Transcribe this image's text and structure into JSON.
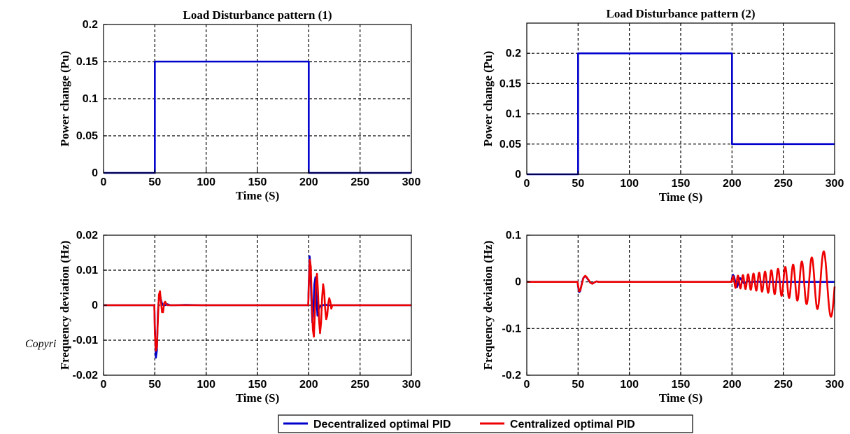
{
  "side_text": "Copyri",
  "legend": {
    "items": [
      {
        "label": "Decentralized optimal PID",
        "color": "#0000cc"
      },
      {
        "label": "Centralized optimal PID",
        "color": "#ee0000"
      }
    ]
  },
  "chart_data": [
    {
      "type": "line",
      "title": "Load Disturbance pattern (1)",
      "xlabel": "Time (S)",
      "ylabel": "Power change (Pu)",
      "xlim": [
        0,
        300
      ],
      "ylim": [
        0,
        0.2
      ],
      "xticks": [
        0,
        50,
        100,
        150,
        200,
        250,
        300
      ],
      "yticks": [
        0,
        0.05,
        0.1,
        0.15,
        0.2
      ],
      "ytick_labels": [
        "0",
        "0.05",
        "0.1",
        "0.15",
        "0.2"
      ],
      "grid": true,
      "series": [
        {
          "color": "#0000cc",
          "x": [
            0,
            50,
            50,
            200,
            200,
            300
          ],
          "y": [
            0,
            0,
            0.15,
            0.15,
            0,
            0
          ]
        }
      ]
    },
    {
      "type": "line",
      "title": "Load Disturbance pattern (2)",
      "xlabel": "Time (S)",
      "ylabel": "Power change (Pu)",
      "xlim": [
        0,
        300
      ],
      "ylim": [
        0,
        0.25
      ],
      "xticks": [
        0,
        50,
        100,
        150,
        200,
        250,
        300
      ],
      "yticks": [
        0,
        0.05,
        0.1,
        0.15,
        0.2
      ],
      "ytick_labels": [
        "0",
        "0.05",
        "0.1",
        "0.15",
        "0.2"
      ],
      "grid": true,
      "series": [
        {
          "color": "#0000cc",
          "x": [
            0,
            50,
            50,
            200,
            200,
            300
          ],
          "y": [
            0,
            0,
            0.2,
            0.2,
            0.05,
            0.05
          ]
        }
      ]
    },
    {
      "type": "line",
      "title": "",
      "xlabel": "Time (S)",
      "ylabel": "Frequency deviation (Hz)",
      "xlim": [
        0,
        300
      ],
      "ylim": [
        -0.02,
        0.02
      ],
      "xticks": [
        0,
        50,
        100,
        150,
        200,
        250,
        300
      ],
      "yticks": [
        -0.02,
        -0.01,
        0,
        0.01,
        0.02
      ],
      "ytick_labels": [
        "-0.02",
        "-0.01",
        "0",
        "0.01",
        "0.02"
      ],
      "grid": true,
      "series": [
        {
          "name": "Decentralized optimal PID",
          "color": "#0000cc",
          "x": [
            0,
            49.5,
            50,
            51,
            52,
            53,
            54,
            55,
            56,
            57,
            58,
            60,
            62,
            65,
            70,
            80,
            95,
            100,
            199.5,
            200,
            200.8,
            201.5,
            202.5,
            203.5,
            204.5,
            205.5,
            206.5,
            207.5,
            208.5,
            209.5,
            210.5,
            212,
            214,
            216,
            218,
            220,
            223,
            300
          ],
          "y": [
            0,
            0,
            -0.006,
            -0.015,
            -0.013,
            -0.002,
            0.002,
            0.003,
            0.0015,
            0.0005,
            0.0001,
            0,
            0.0003,
            0,
            0,
            0.0001,
            0,
            0,
            0,
            0.006,
            0.014,
            0.012,
            0.002,
            -0.005,
            -0.001,
            0.006,
            0.008,
            0.002,
            -0.003,
            -0.0015,
            -0.0005,
            -0.0003,
            0,
            0.0002,
            0,
            0,
            0,
            0
          ]
        },
        {
          "name": "Centralized optimal PID",
          "color": "#ee0000",
          "x": [
            0,
            49.5,
            50,
            51,
            52,
            53,
            54,
            55,
            56,
            57,
            58,
            59,
            60,
            62,
            65,
            70,
            100,
            199.5,
            200,
            201,
            202,
            203,
            204,
            205,
            206,
            207,
            208,
            209,
            210,
            211,
            212,
            213,
            214,
            215,
            216,
            217,
            218,
            219,
            220,
            221,
            222,
            223,
            224,
            300
          ],
          "y": [
            0,
            0,
            -0.008,
            -0.013,
            -0.012,
            -0.004,
            0.003,
            0.004,
            0.001,
            -0.002,
            -0.002,
            0.0005,
            0.001,
            0,
            0,
            0,
            0,
            0,
            0.005,
            0.013,
            0.011,
            0.001,
            -0.007,
            -0.009,
            -0.002,
            0.006,
            0.009,
            0.004,
            -0.004,
            -0.008,
            -0.005,
            0.002,
            0.006,
            0.004,
            -0.001,
            -0.004,
            -0.003,
            0.0005,
            0.002,
            0.001,
            -0.001,
            0,
            0,
            0
          ]
        }
      ]
    },
    {
      "type": "line",
      "title": "",
      "xlabel": "Time (S)",
      "ylabel": "Frequency deviation (Hz)",
      "xlim": [
        0,
        300
      ],
      "ylim": [
        -0.2,
        0.1
      ],
      "xticks": [
        0,
        50,
        100,
        150,
        200,
        250,
        300
      ],
      "yticks": [
        -0.2,
        -0.1,
        0,
        0.1
      ],
      "ytick_labels": [
        "-0.2",
        "-0.1",
        "0",
        "0.1"
      ],
      "grid": true,
      "series": [
        {
          "name": "Decentralized optimal PID",
          "color": "#0000cc",
          "x": [
            0,
            49.5,
            50,
            51,
            52,
            53,
            54,
            55,
            56,
            57,
            58,
            60,
            62,
            64,
            66,
            68,
            70,
            199.5,
            200,
            201,
            202,
            203,
            204,
            205,
            206,
            207,
            208,
            210,
            212,
            215,
            218,
            222,
            230,
            300
          ],
          "y": [
            0,
            0,
            -0.01,
            -0.022,
            -0.02,
            -0.01,
            0,
            0.008,
            0.011,
            0.012,
            0.01,
            0.004,
            -0.002,
            -0.004,
            -0.001,
            0.001,
            0,
            0,
            0.008,
            0.015,
            0.012,
            0.002,
            -0.008,
            -0.011,
            -0.004,
            0.005,
            0.008,
            0.001,
            -0.004,
            0.002,
            -0.001,
            0.0005,
            0,
            0
          ]
        },
        {
          "name": "Centralized optimal PID",
          "color": "#ee0000",
          "x": [
            0,
            49.5,
            50,
            51,
            52,
            53,
            54,
            55,
            56,
            57,
            58,
            60,
            62,
            64,
            66,
            68,
            70,
            199.5,
            200
          ],
          "y": [
            0,
            0,
            -0.008,
            -0.02,
            -0.019,
            -0.011,
            -0.002,
            0.007,
            0.011,
            0.013,
            0.011,
            0.005,
            -0.002,
            -0.004,
            -0.001,
            0.001,
            0,
            0,
            0.005
          ],
          "oscillation": {
            "start": 200,
            "end": 300,
            "freq_start": 0.22,
            "freq_end": 0.06,
            "amp_start": 0.012,
            "amp_end": 0.08
          }
        }
      ]
    }
  ]
}
